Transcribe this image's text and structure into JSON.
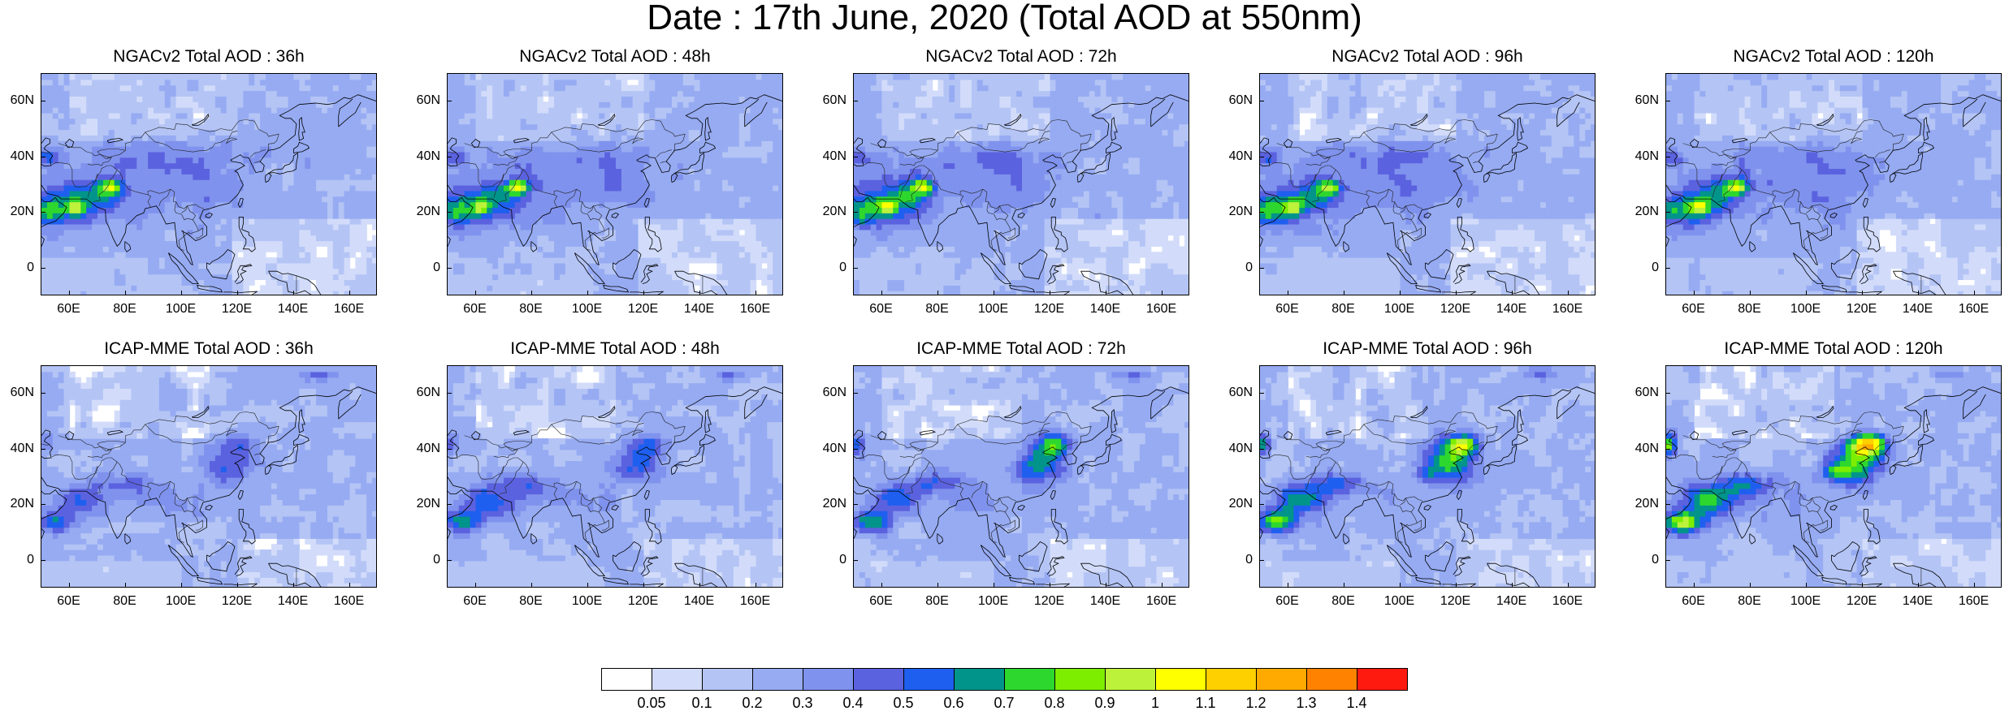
{
  "title": "Date : 17th June, 2020 (Total AOD at 550nm)",
  "axes": {
    "lat_labels": [
      "60N",
      "40N",
      "20N",
      "0"
    ],
    "lat_values": [
      60,
      40,
      20,
      0
    ],
    "lat_range": [
      -10,
      70
    ],
    "lon_labels": [
      "60E",
      "80E",
      "100E",
      "120E",
      "140E",
      "160E"
    ],
    "lon_values": [
      60,
      80,
      100,
      120,
      140,
      160
    ],
    "lon_range": [
      50,
      170
    ]
  },
  "panels": [
    {
      "title": "NGACv2 Total AOD : 36h",
      "model": "NGACv2",
      "lead": 36
    },
    {
      "title": "NGACv2 Total AOD : 48h",
      "model": "NGACv2",
      "lead": 48
    },
    {
      "title": "NGACv2 Total AOD : 72h",
      "model": "NGACv2",
      "lead": 72
    },
    {
      "title": "NGACv2 Total AOD : 96h",
      "model": "NGACv2",
      "lead": 96
    },
    {
      "title": "NGACv2 Total AOD : 120h",
      "model": "NGACv2",
      "lead": 120
    },
    {
      "title": "ICAP-MME Total AOD : 36h",
      "model": "ICAP-MME",
      "lead": 36
    },
    {
      "title": "ICAP-MME Total AOD : 48h",
      "model": "ICAP-MME",
      "lead": 48
    },
    {
      "title": "ICAP-MME Total AOD : 72h",
      "model": "ICAP-MME",
      "lead": 72
    },
    {
      "title": "ICAP-MME Total AOD : 96h",
      "model": "ICAP-MME",
      "lead": 96
    },
    {
      "title": "ICAP-MME Total AOD : 120h",
      "model": "ICAP-MME",
      "lead": 120
    }
  ],
  "colorbar": {
    "labels": [
      "0.05",
      "0.1",
      "0.2",
      "0.3",
      "0.4",
      "0.5",
      "0.6",
      "0.7",
      "0.8",
      "0.9",
      "1",
      "1.1",
      "1.2",
      "1.3",
      "1.4"
    ],
    "colors": [
      "#ffffff",
      "#d2dcfa",
      "#b4c4f5",
      "#96abf2",
      "#7f92ed",
      "#5b62df",
      "#1f5ff0",
      "#00948a",
      "#2ed72e",
      "#7dee00",
      "#bdf23a",
      "#ffff00",
      "#ffd000",
      "#ffaa00",
      "#ff8200",
      "#ff1a10"
    ]
  }
}
